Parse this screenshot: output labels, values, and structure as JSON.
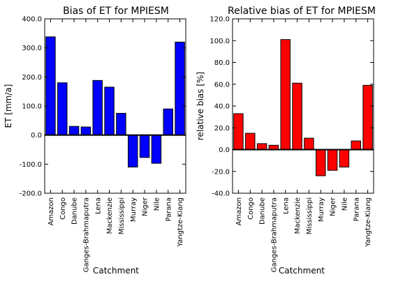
{
  "chart_data": [
    {
      "type": "bar",
      "title": "Bias of ET for MPIESM",
      "xlabel": "Catchment",
      "ylabel": "ET [mm/a]",
      "categories": [
        "Amazon",
        "Congo",
        "Danube",
        "Ganges-Brahmaputra",
        "Lena",
        "Mackenzie",
        "Mississippi",
        "Murray",
        "Niger",
        "Nile",
        "Parana",
        "Yangtze-Kiang"
      ],
      "values": [
        338,
        180,
        30,
        28,
        188,
        165,
        75,
        -110,
        -77,
        -97,
        90,
        320
      ],
      "ylim": [
        -200,
        400
      ],
      "yticks": [
        "-200.0",
        "-100.0",
        "0.0",
        "100.0",
        "200.0",
        "300.0",
        "400.0"
      ],
      "grid": false,
      "zero_line": true,
      "color": "#0000ff"
    },
    {
      "type": "bar",
      "title": "Relative bias of ET for MPIESM",
      "xlabel": "Catchment",
      "ylabel": "relative bias [%]",
      "categories": [
        "Amazon",
        "Congo",
        "Danube",
        "Ganges-Brahmaputra",
        "Lena",
        "Mackenzie",
        "Mississippi",
        "Murray",
        "Niger",
        "Nile",
        "Parana",
        "Yangtze-Kiang"
      ],
      "values": [
        33,
        15,
        5.5,
        4,
        101,
        61,
        10.5,
        -24,
        -19,
        -16,
        8,
        59
      ],
      "ylim": [
        -40,
        120
      ],
      "yticks": [
        "-40.0",
        "-20.0",
        "0.0",
        "20.0",
        "40.0",
        "60.0",
        "80.0",
        "100.0",
        "120.0"
      ],
      "grid": false,
      "zero_line": true,
      "color": "#ff0000"
    }
  ]
}
